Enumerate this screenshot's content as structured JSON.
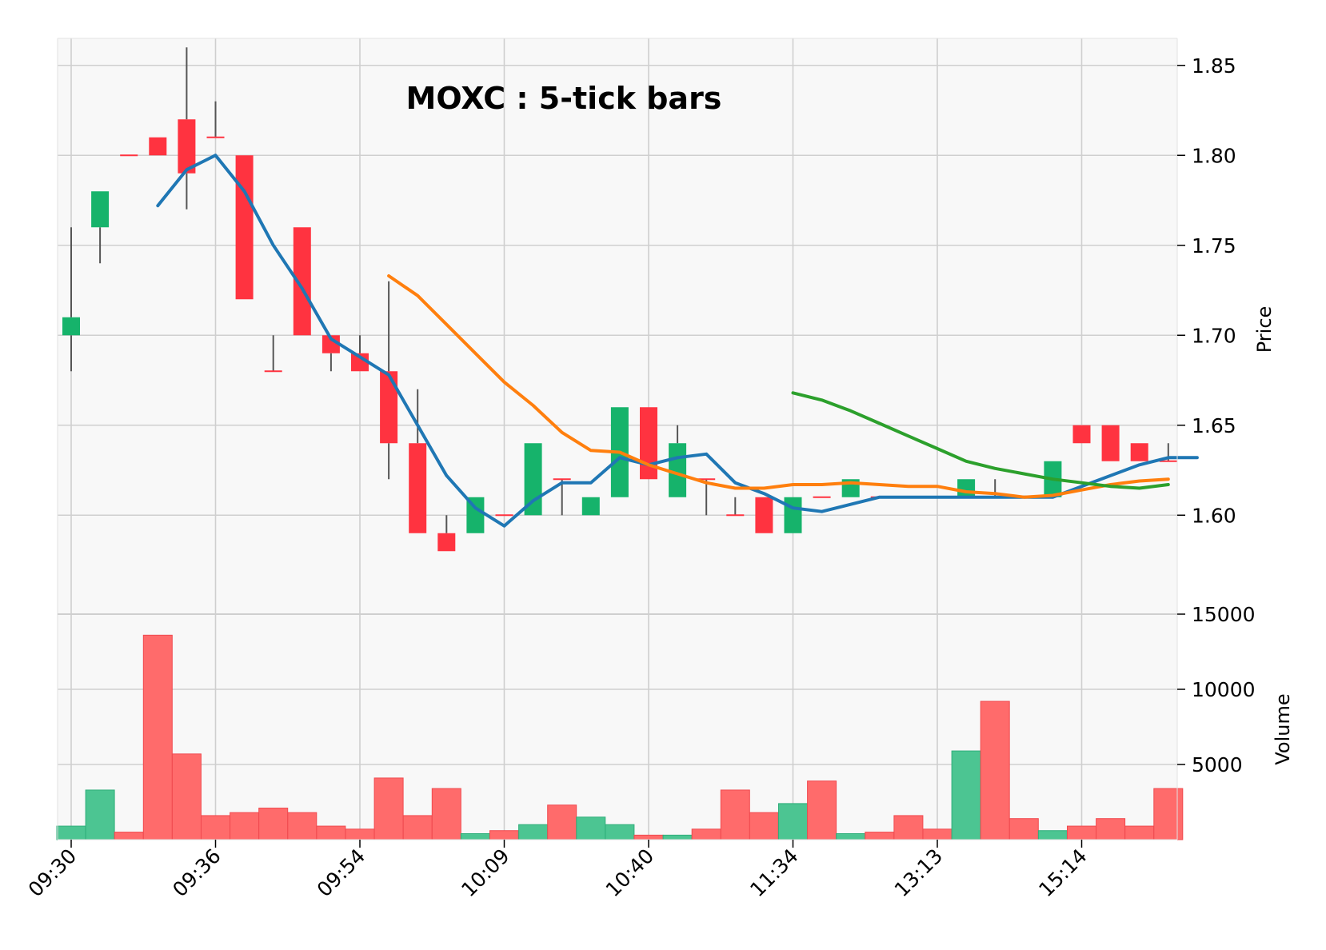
{
  "chart_data": {
    "type": "candlestick",
    "title": "MOXC : 5-tick bars",
    "price_axis": {
      "label": "Price",
      "ylim": [
        1.545,
        1.865
      ],
      "ticks": [
        1.6,
        1.65,
        1.7,
        1.75,
        1.8,
        1.85
      ],
      "tick_labels": [
        "1.60",
        "1.65",
        "1.70",
        "1.75",
        "1.80",
        "1.85"
      ]
    },
    "volume_axis": {
      "label": "Volume",
      "ylim": [
        0,
        15000
      ],
      "ticks": [
        5000,
        10000,
        15000
      ],
      "tick_labels": [
        "5000",
        "10000",
        "15000"
      ]
    },
    "x_tick_labels": [
      {
        "bar": 0,
        "label": "09:30"
      },
      {
        "bar": 5,
        "label": "09:36"
      },
      {
        "bar": 10,
        "label": "09:54"
      },
      {
        "bar": 15,
        "label": "10:09"
      },
      {
        "bar": 20,
        "label": "10:40"
      },
      {
        "bar": 25,
        "label": "11:34"
      },
      {
        "bar": 30,
        "label": "13:13"
      },
      {
        "bar": 35,
        "label": "15:14"
      }
    ],
    "grid": true,
    "up_color": "#16b36b",
    "down_color": "#ff3340",
    "volume_up_color": "#4cc592",
    "volume_down_color": "#ff6b6b",
    "candles": [
      {
        "o": 1.7,
        "h": 1.76,
        "l": 1.68,
        "c": 1.71,
        "v": 900
      },
      {
        "o": 1.76,
        "h": 1.78,
        "l": 1.74,
        "c": 1.78,
        "v": 3300
      },
      {
        "o": 1.8,
        "h": 1.8,
        "l": 1.8,
        "c": 1.8,
        "v": 500
      },
      {
        "o": 1.81,
        "h": 1.81,
        "l": 1.8,
        "c": 1.8,
        "v": 13600
      },
      {
        "o": 1.82,
        "h": 1.86,
        "l": 1.77,
        "c": 1.79,
        "v": 5700
      },
      {
        "o": 1.81,
        "h": 1.83,
        "l": 1.81,
        "c": 1.81,
        "v": 1600
      },
      {
        "o": 1.8,
        "h": 1.8,
        "l": 1.72,
        "c": 1.72,
        "v": 1800
      },
      {
        "o": 1.68,
        "h": 1.7,
        "l": 1.68,
        "c": 1.68,
        "v": 2100
      },
      {
        "o": 1.76,
        "h": 1.76,
        "l": 1.7,
        "c": 1.7,
        "v": 1800
      },
      {
        "o": 1.7,
        "h": 1.7,
        "l": 1.68,
        "c": 1.69,
        "v": 900
      },
      {
        "o": 1.69,
        "h": 1.7,
        "l": 1.68,
        "c": 1.68,
        "v": 700
      },
      {
        "o": 1.68,
        "h": 1.73,
        "l": 1.62,
        "c": 1.64,
        "v": 4100
      },
      {
        "o": 1.64,
        "h": 1.67,
        "l": 1.59,
        "c": 1.59,
        "v": 1600
      },
      {
        "o": 1.59,
        "h": 1.6,
        "l": 1.58,
        "c": 1.58,
        "v": 3400
      },
      {
        "o": 1.59,
        "h": 1.61,
        "l": 1.59,
        "c": 1.61,
        "v": 400
      },
      {
        "o": 1.6,
        "h": 1.6,
        "l": 1.6,
        "c": 1.6,
        "v": 600
      },
      {
        "o": 1.6,
        "h": 1.64,
        "l": 1.6,
        "c": 1.64,
        "v": 1000
      },
      {
        "o": 1.62,
        "h": 1.62,
        "l": 1.6,
        "c": 1.62,
        "v": 2300
      },
      {
        "o": 1.6,
        "h": 1.61,
        "l": 1.6,
        "c": 1.61,
        "v": 1500
      },
      {
        "o": 1.61,
        "h": 1.66,
        "l": 1.61,
        "c": 1.66,
        "v": 1000
      },
      {
        "o": 1.66,
        "h": 1.66,
        "l": 1.62,
        "c": 1.62,
        "v": 300
      },
      {
        "o": 1.61,
        "h": 1.65,
        "l": 1.61,
        "c": 1.64,
        "v": 300
      },
      {
        "o": 1.62,
        "h": 1.62,
        "l": 1.6,
        "c": 1.62,
        "v": 700
      },
      {
        "o": 1.6,
        "h": 1.61,
        "l": 1.6,
        "c": 1.6,
        "v": 3300
      },
      {
        "o": 1.61,
        "h": 1.61,
        "l": 1.59,
        "c": 1.59,
        "v": 1800
      },
      {
        "o": 1.59,
        "h": 1.61,
        "l": 1.59,
        "c": 1.61,
        "v": 2400
      },
      {
        "o": 1.61,
        "h": 1.61,
        "l": 1.61,
        "c": 1.61,
        "v": 3900
      },
      {
        "o": 1.61,
        "h": 1.62,
        "l": 1.61,
        "c": 1.62,
        "v": 400
      },
      {
        "o": 1.61,
        "h": 1.61,
        "l": 1.61,
        "c": 1.61,
        "v": 500
      },
      {
        "o": 1.61,
        "h": 1.61,
        "l": 1.61,
        "c": 1.61,
        "v": 1600
      },
      {
        "o": 1.61,
        "h": 1.61,
        "l": 1.61,
        "c": 1.61,
        "v": 700
      },
      {
        "o": 1.61,
        "h": 1.62,
        "l": 1.61,
        "c": 1.62,
        "v": 5900
      },
      {
        "o": 1.61,
        "h": 1.62,
        "l": 1.61,
        "c": 1.61,
        "v": 9200
      },
      {
        "o": 1.61,
        "h": 1.61,
        "l": 1.61,
        "c": 1.61,
        "v": 1400
      },
      {
        "o": 1.61,
        "h": 1.63,
        "l": 1.61,
        "c": 1.63,
        "v": 600
      },
      {
        "o": 1.65,
        "h": 1.65,
        "l": 1.64,
        "c": 1.64,
        "v": 900
      },
      {
        "o": 1.65,
        "h": 1.65,
        "l": 1.63,
        "c": 1.63,
        "v": 1400
      },
      {
        "o": 1.64,
        "h": 1.64,
        "l": 1.63,
        "c": 1.63,
        "v": 900
      },
      {
        "o": 1.63,
        "h": 1.64,
        "l": 1.63,
        "c": 1.63,
        "v": 3400
      }
    ],
    "moving_averages": [
      {
        "color": "#1f77b4",
        "start": 3,
        "values": [
          1.772,
          1.792,
          1.8,
          1.78,
          1.75,
          1.726,
          1.698,
          1.688,
          1.678,
          1.65,
          1.622,
          1.604,
          1.594,
          1.608,
          1.618,
          1.618,
          1.632,
          1.628,
          1.632,
          1.634,
          1.618,
          1.612,
          1.604,
          1.602,
          1.606,
          1.61,
          1.61,
          1.61,
          1.61,
          1.61,
          1.61,
          1.61,
          1.616,
          1.622,
          1.628,
          1.632,
          1.632
        ]
      },
      {
        "color": "#ff7f0e",
        "start": 11,
        "values": [
          1.733,
          1.722,
          1.706,
          1.69,
          1.674,
          1.661,
          1.646,
          1.636,
          1.635,
          1.628,
          1.623,
          1.618,
          1.615,
          1.615,
          1.617,
          1.617,
          1.618,
          1.617,
          1.616,
          1.616,
          1.613,
          1.612,
          1.61,
          1.611,
          1.614,
          1.617,
          1.619,
          1.62
        ]
      },
      {
        "color": "#2ca02c",
        "start": 25,
        "values": [
          1.668,
          1.664,
          1.658,
          1.651,
          1.644,
          1.637,
          1.63,
          1.626,
          1.623,
          1.62,
          1.618,
          1.616,
          1.615,
          1.617
        ]
      }
    ]
  }
}
